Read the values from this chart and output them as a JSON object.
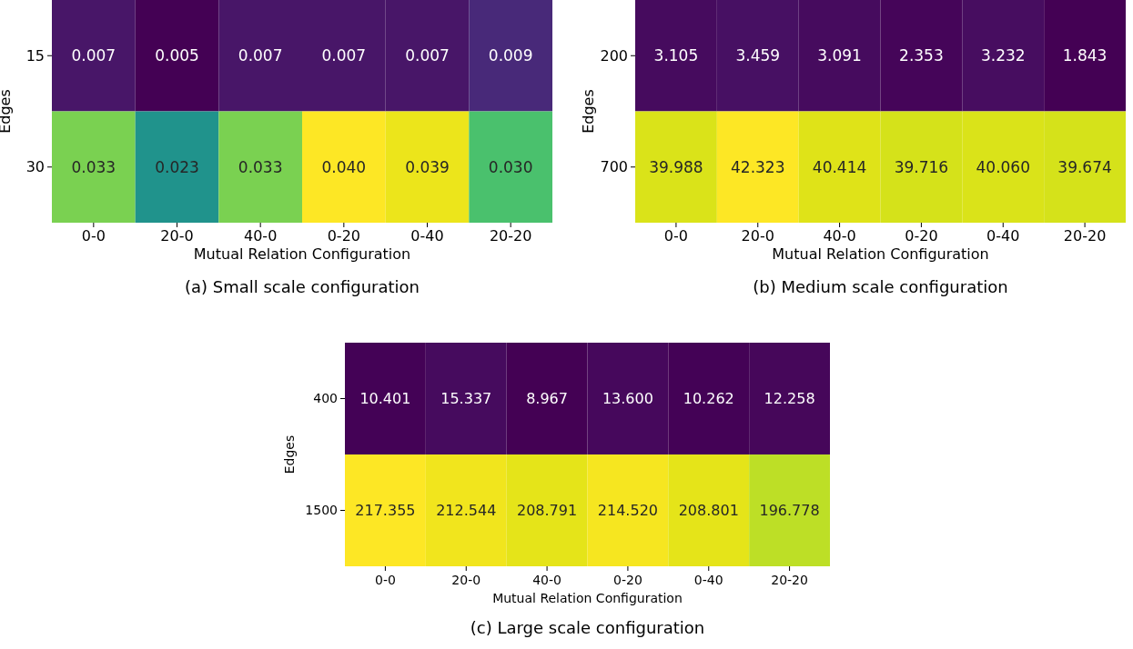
{
  "chart_data": [
    {
      "type": "heatmap",
      "title": "(a) Small scale configuration",
      "xlabel": "Mutual Relation Configuration",
      "ylabel": "Edges",
      "categories": [
        "0-0",
        "20-0",
        "40-0",
        "0-20",
        "0-40",
        "20-20"
      ],
      "y_categories": [
        "15",
        "30"
      ],
      "cells": [
        [
          0.007,
          0.005,
          0.007,
          0.007,
          0.007,
          0.009
        ],
        [
          0.033,
          0.023,
          0.033,
          0.04,
          0.039,
          0.03
        ]
      ],
      "cell_labels": [
        [
          "0.007",
          "0.005",
          "0.007",
          "0.007",
          "0.007",
          "0.009"
        ],
        [
          "0.033",
          "0.023",
          "0.033",
          "0.040",
          "0.039",
          "0.030"
        ]
      ]
    },
    {
      "type": "heatmap",
      "title": "(b) Medium scale configuration",
      "xlabel": "Mutual Relation Configuration",
      "ylabel": "Edges",
      "categories": [
        "0-0",
        "20-0",
        "40-0",
        "0-20",
        "0-40",
        "20-20"
      ],
      "y_categories": [
        "200",
        "700"
      ],
      "cells": [
        [
          3.105,
          3.459,
          3.091,
          2.353,
          3.232,
          1.843
        ],
        [
          39.988,
          42.323,
          40.414,
          39.716,
          40.06,
          39.674
        ]
      ],
      "cell_labels": [
        [
          "3.105",
          "3.459",
          "3.091",
          "2.353",
          "3.232",
          "1.843"
        ],
        [
          "39.988",
          "42.323",
          "40.414",
          "39.716",
          "40.060",
          "39.674"
        ]
      ]
    },
    {
      "type": "heatmap",
      "title": "(c) Large scale configuration",
      "xlabel": "Mutual Relation Configuration",
      "ylabel": "Edges",
      "categories": [
        "0-0",
        "20-0",
        "40-0",
        "0-20",
        "0-40",
        "20-20"
      ],
      "y_categories": [
        "400",
        "1500"
      ],
      "cells": [
        [
          10.401,
          15.337,
          8.967,
          13.6,
          10.262,
          12.258
        ],
        [
          217.355,
          212.544,
          208.791,
          214.52,
          208.801,
          196.778
        ]
      ],
      "cell_labels": [
        [
          "10.401",
          "15.337",
          "8.967",
          "13.600",
          "10.262",
          "12.258"
        ],
        [
          "217.355",
          "212.544",
          "208.791",
          "214.520",
          "208.801",
          "196.778"
        ]
      ]
    }
  ]
}
